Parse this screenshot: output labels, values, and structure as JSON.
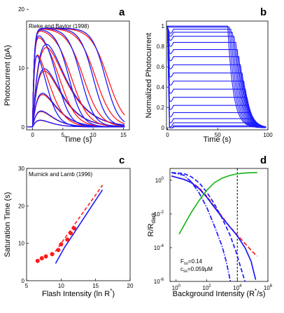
{
  "colors": {
    "red": "#ff1a1a",
    "blue": "#1a1aff",
    "green": "#1fb81f",
    "black": "#000000"
  },
  "chart_data": [
    {
      "panel": "a",
      "type": "line",
      "annotation": "Rieke and Baylor (1998)",
      "xlabel": "Time (s)",
      "ylabel": "Photocurrent (pA)",
      "xlim": [
        -1,
        16
      ],
      "ylim": [
        -0.5,
        18
      ],
      "xticks": [
        0,
        5,
        10,
        15
      ],
      "yticks": [
        0,
        10,
        20
      ],
      "saturation_pA": 16.8,
      "flash_families": [
        {
          "peak": 1.1,
          "t_saturation": 0
        },
        {
          "peak": 2.6,
          "t_saturation": 0
        },
        {
          "peak": 5.5,
          "t_saturation": 0
        },
        {
          "peak": 9.5,
          "t_saturation": 0
        },
        {
          "peak": 13.5,
          "t_saturation": 0
        },
        {
          "peak": 16.8,
          "t_saturation": 2
        },
        {
          "peak": 16.8,
          "t_saturation": 4
        },
        {
          "peak": 16.8,
          "t_saturation": 6
        },
        {
          "peak": 16.8,
          "t_saturation": 8
        },
        {
          "peak": 16.8,
          "t_saturation": 10
        },
        {
          "peak": 16.8,
          "t_saturation": 12
        }
      ]
    },
    {
      "panel": "b",
      "type": "line",
      "annotation": "",
      "xlabel": "Time (s)",
      "ylabel": "Normalized Photocurrent",
      "xlim": [
        -1,
        100
      ],
      "ylim": [
        -0.02,
        1.05
      ],
      "xticks": [
        0,
        50,
        100
      ],
      "yticks": [
        0,
        0.2,
        0.4,
        0.6,
        0.8,
        1
      ],
      "step_off_time": 60,
      "steady_levels": [
        1,
        0.99,
        0.97,
        0.94,
        0.9,
        0.84,
        0.77,
        0.7,
        0.62,
        0.54,
        0.46,
        0.38,
        0.3,
        0.22,
        0.15,
        0.09,
        0.05,
        0.02,
        0.01
      ]
    },
    {
      "panel": "c",
      "type": "scatter",
      "annotation": "Murnick and Lamb (1996)",
      "xlabel": "Flash Intensity (ln R",
      "xlabel_sup": "*",
      "xlabel_tail": ")",
      "ylabel": "Saturation Time (s)",
      "xlim": [
        5,
        20
      ],
      "ylim": [
        0,
        30
      ],
      "xticks": [
        5,
        10,
        15,
        20
      ],
      "yticks": [
        0,
        10,
        20,
        30
      ],
      "points": [
        {
          "x": 6.6,
          "y": 5.3
        },
        {
          "x": 7.2,
          "y": 6.0
        },
        {
          "x": 7.8,
          "y": 6.5
        },
        {
          "x": 8.7,
          "y": 7.1
        },
        {
          "x": 9.6,
          "y": 8.2
        },
        {
          "x": 10.0,
          "y": 9.7
        },
        {
          "x": 10.9,
          "y": 11.0
        },
        {
          "x": 11.4,
          "y": 12.7
        },
        {
          "x": 11.9,
          "y": 14.0
        }
      ],
      "fit_dashed": [
        {
          "x": 8.7,
          "y": 6.6
        },
        {
          "x": 16.0,
          "y": 25.5
        }
      ],
      "fit_solid": [
        {
          "x": 9.2,
          "y": 4.6
        },
        {
          "x": 10.5,
          "y": 8.9
        },
        {
          "x": 16.0,
          "y": 24.3
        }
      ]
    },
    {
      "panel": "d",
      "type": "line",
      "annotation": "",
      "xlabel": "Background Intensity (R",
      "xlabel_sup": "*",
      "xlabel_tail": "/s)",
      "ylabel": "R/R",
      "ylabel_sub": "dark",
      "xscale": "log",
      "yscale": "log",
      "xlim_exp": [
        -0.4,
        6
      ],
      "ylim_exp": [
        -6,
        0.7
      ],
      "xtick_exps": [
        0,
        2,
        4,
        6
      ],
      "ytick_exps": [
        -6,
        -4,
        -2,
        0
      ],
      "tick_base": "10",
      "vline_x_exp": 4,
      "params": [
        "F",
        "ss",
        "=0.14",
        "c",
        "ss",
        "=0.059μM"
      ],
      "series": [
        {
          "color": "red",
          "style": "dashed",
          "points": [
            [
              -0.3,
              0.25
            ],
            [
              0.5,
              0.05
            ],
            [
              1,
              -0.12
            ],
            [
              1.5,
              -0.45
            ],
            [
              2,
              -0.95
            ],
            [
              2.5,
              -1.55
            ],
            [
              3,
              -2.15
            ],
            [
              3.5,
              -2.75
            ],
            [
              4,
              -3.25
            ],
            [
              4.5,
              -3.75
            ],
            [
              5,
              -4.25
            ],
            [
              5.3,
              -4.5
            ]
          ]
        },
        {
          "color": "blue",
          "style": "solid",
          "points": [
            [
              -0.3,
              0.25
            ],
            [
              0.5,
              0.05
            ],
            [
              1,
              -0.15
            ],
            [
              1.5,
              -0.5
            ],
            [
              2,
              -1.0
            ],
            [
              2.5,
              -1.6
            ],
            [
              3,
              -2.2
            ],
            [
              3.5,
              -2.75
            ],
            [
              4,
              -3.3
            ],
            [
              4.5,
              -4.0
            ],
            [
              4.9,
              -4.8
            ],
            [
              5.2,
              -5.9
            ]
          ]
        },
        {
          "color": "blue",
          "style": "dashed",
          "points": [
            [
              -0.3,
              0.45
            ],
            [
              0.5,
              0.4
            ],
            [
              1,
              0.2
            ],
            [
              1.5,
              -0.15
            ],
            [
              2,
              -0.7
            ],
            [
              2.5,
              -1.4
            ],
            [
              3,
              -2.25
            ],
            [
              3.5,
              -3.2
            ],
            [
              3.9,
              -4.2
            ],
            [
              4.3,
              -5.4
            ],
            [
              4.5,
              -6
            ]
          ]
        },
        {
          "color": "blue",
          "style": "dashdot",
          "points": [
            [
              -0.3,
              0.45
            ],
            [
              0.5,
              0.3
            ],
            [
              1,
              -0.1
            ],
            [
              1.5,
              -0.75
            ],
            [
              2,
              -1.6
            ],
            [
              2.5,
              -2.7
            ],
            [
              3,
              -3.9
            ],
            [
              3.3,
              -4.9
            ],
            [
              3.55,
              -6
            ]
          ]
        },
        {
          "color": "green",
          "style": "solid",
          "points": [
            [
              0.2,
              -3.2
            ],
            [
              0.5,
              -2.7
            ],
            [
              1,
              -1.9
            ],
            [
              1.5,
              -1.2
            ],
            [
              2,
              -0.6
            ],
            [
              2.5,
              -0.15
            ],
            [
              3,
              0.12
            ],
            [
              3.5,
              0.28
            ],
            [
              4,
              0.38
            ],
            [
              4.5,
              0.43
            ],
            [
              5,
              0.45
            ],
            [
              5.3,
              0.45
            ]
          ]
        }
      ]
    }
  ]
}
